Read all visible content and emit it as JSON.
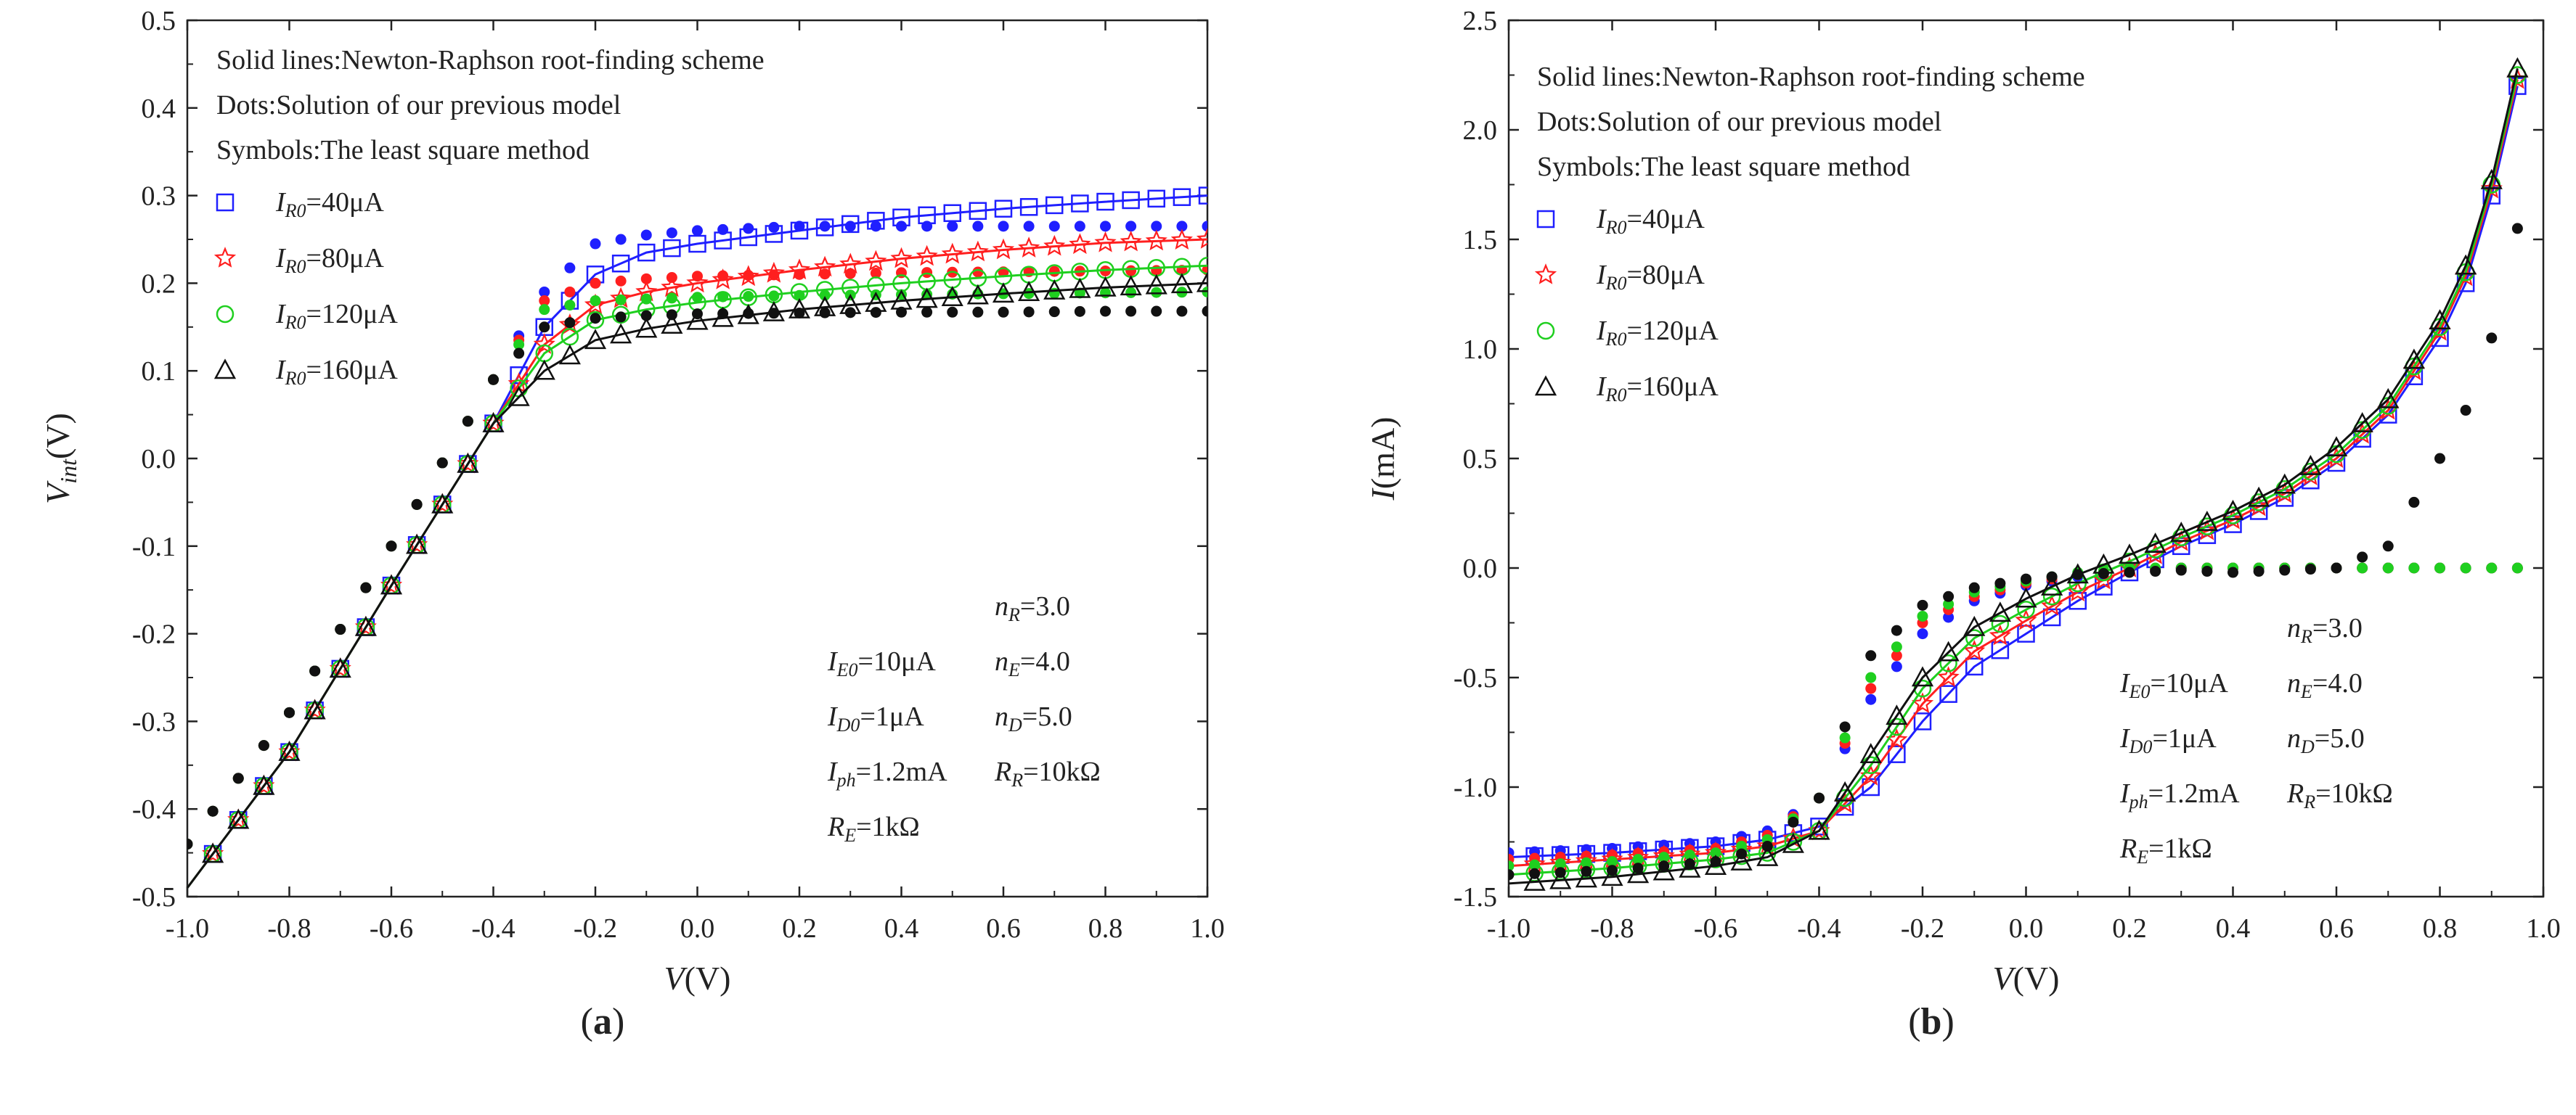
{
  "chart_data": [
    {
      "panel": "a",
      "type": "line",
      "caption": "(a)",
      "xlabel": "V(V)",
      "ylabel": "Vint(V)",
      "ylabel_main": "V",
      "ylabel_sub": "int",
      "ylabel_unit": "(V)",
      "xlim": [
        -1.0,
        1.0
      ],
      "ylim": [
        -0.5,
        0.5
      ],
      "xticks": [
        "-1.0",
        "-0.8",
        "-0.6",
        "-0.4",
        "-0.2",
        "0.0",
        "0.2",
        "0.4",
        "0.6",
        "0.8",
        "1.0"
      ],
      "yticks": [
        "-0.5",
        "-0.4",
        "-0.3",
        "-0.2",
        "-0.1",
        "0.0",
        "0.1",
        "0.2",
        "0.3",
        "0.4",
        "0.5"
      ],
      "legend_lines": [
        "Solid lines:Newton-Raphson root-finding scheme",
        "Dots:Solution of our previous model",
        "Symbols:The least square method"
      ],
      "legend_location": "top-left",
      "params": [
        {
          "main": "n",
          "sub": "R",
          "rest": "=3.0"
        },
        {
          "main": "I",
          "sub": "E0",
          "rest": "=10μA"
        },
        {
          "main": "n",
          "sub": "E",
          "rest": "=4.0"
        },
        {
          "main": "I",
          "sub": "D0",
          "rest": "=1μA"
        },
        {
          "main": "n",
          "sub": "D",
          "rest": "=5.0"
        },
        {
          "main": "I",
          "sub": "ph",
          "rest": "=1.2mA"
        },
        {
          "main": "R",
          "sub": "R",
          "rest": "=10kΩ"
        },
        {
          "main": "R",
          "sub": "E",
          "rest": "=1kΩ"
        }
      ],
      "series": [
        {
          "name": "IR0=40μA",
          "label_main": "I",
          "label_sub": "R0",
          "label_rest": "=40μA",
          "color": "#1f1fff",
          "marker": "square",
          "x": [
            -1.0,
            -0.8,
            -0.6,
            -0.4,
            -0.3,
            -0.2,
            -0.1,
            0.0,
            0.2,
            0.4,
            0.6,
            0.8,
            1.0
          ],
          "line": [
            -0.49,
            -0.335,
            -0.145,
            0.04,
            0.15,
            0.21,
            0.235,
            0.245,
            0.26,
            0.275,
            0.285,
            0.293,
            0.3
          ],
          "dots": [
            -0.44,
            -0.29,
            -0.1,
            0.09,
            0.19,
            0.245,
            0.255,
            0.26,
            0.265,
            0.265,
            0.265,
            0.265,
            0.265
          ]
        },
        {
          "name": "IR0=80μA",
          "label_main": "I",
          "label_sub": "R0",
          "label_rest": "=80μA",
          "color": "#ff1f1f",
          "marker": "star",
          "x": [
            -1.0,
            -0.8,
            -0.6,
            -0.4,
            -0.3,
            -0.2,
            -0.1,
            0.0,
            0.2,
            0.4,
            0.6,
            0.8,
            1.0
          ],
          "line": [
            -0.49,
            -0.335,
            -0.145,
            0.04,
            0.13,
            0.175,
            0.19,
            0.2,
            0.215,
            0.228,
            0.238,
            0.246,
            0.25
          ],
          "dots": [
            -0.44,
            -0.29,
            -0.1,
            0.09,
            0.18,
            0.2,
            0.205,
            0.208,
            0.21,
            0.212,
            0.213,
            0.214,
            0.215
          ]
        },
        {
          "name": "IR0=120μA",
          "label_main": "I",
          "label_sub": "R0",
          "label_rest": "=120μA",
          "color": "#1fcf1f",
          "marker": "circle",
          "x": [
            -1.0,
            -0.8,
            -0.6,
            -0.4,
            -0.3,
            -0.2,
            -0.1,
            0.0,
            0.2,
            0.4,
            0.6,
            0.8,
            1.0
          ],
          "line": [
            -0.49,
            -0.335,
            -0.145,
            0.04,
            0.12,
            0.158,
            0.17,
            0.178,
            0.19,
            0.2,
            0.208,
            0.215,
            0.22
          ],
          "dots": [
            -0.44,
            -0.29,
            -0.1,
            0.09,
            0.17,
            0.18,
            0.182,
            0.184,
            0.186,
            0.187,
            0.188,
            0.189,
            0.19
          ]
        },
        {
          "name": "IR0=160μA",
          "label_main": "I",
          "label_sub": "R0",
          "label_rest": "=160μA",
          "color": "#111111",
          "marker": "triangle",
          "x": [
            -1.0,
            -0.8,
            -0.6,
            -0.4,
            -0.3,
            -0.2,
            -0.1,
            0.0,
            0.2,
            0.4,
            0.6,
            0.8,
            1.0
          ],
          "line": [
            -0.49,
            -0.335,
            -0.145,
            0.04,
            0.1,
            0.135,
            0.148,
            0.157,
            0.17,
            0.18,
            0.188,
            0.195,
            0.2
          ],
          "dots": [
            -0.44,
            -0.29,
            -0.1,
            0.09,
            0.15,
            0.16,
            0.163,
            0.165,
            0.166,
            0.167,
            0.167,
            0.168,
            0.168
          ]
        }
      ]
    },
    {
      "panel": "b",
      "type": "line",
      "caption": "(b)",
      "xlabel": "V(V)",
      "ylabel": "I(mA)",
      "ylabel_main": "I",
      "ylabel_sub": "",
      "ylabel_unit": "(mA)",
      "xlim": [
        -1.0,
        1.0
      ],
      "ylim": [
        -1.5,
        2.5
      ],
      "xticks": [
        "-1.0",
        "-0.8",
        "-0.6",
        "-0.4",
        "-0.2",
        "0.0",
        "0.2",
        "0.4",
        "0.6",
        "0.8",
        "1.0"
      ],
      "yticks": [
        "-1.5",
        "-1.0",
        "-0.5",
        "0.0",
        "0.5",
        "1.0",
        "1.5",
        "2.0",
        "2.5"
      ],
      "legend_lines": [
        "Solid lines:Newton-Raphson root-finding scheme",
        "Dots:Solution of our previous model",
        "Symbols:The least square method"
      ],
      "legend_location": "top-left",
      "params": [
        {
          "main": "n",
          "sub": "R",
          "rest": "=3.0"
        },
        {
          "main": "I",
          "sub": "E0",
          "rest": "=10μA"
        },
        {
          "main": "n",
          "sub": "E",
          "rest": "=4.0"
        },
        {
          "main": "I",
          "sub": "D0",
          "rest": "=1μA"
        },
        {
          "main": "n",
          "sub": "D",
          "rest": "=5.0"
        },
        {
          "main": "I",
          "sub": "ph",
          "rest": "=1.2mA"
        },
        {
          "main": "R",
          "sub": "R",
          "rest": "=10kΩ"
        },
        {
          "main": "R",
          "sub": "E",
          "rest": "=1kΩ"
        }
      ],
      "series": [
        {
          "name": "IR0=40μA",
          "label_main": "I",
          "label_sub": "R0",
          "label_rest": "=40μA",
          "color": "#1f1fff",
          "marker": "square",
          "x": [
            -1.0,
            -0.8,
            -0.6,
            -0.5,
            -0.4,
            -0.3,
            -0.2,
            -0.1,
            0.0,
            0.1,
            0.2,
            0.3,
            0.4,
            0.5,
            0.6,
            0.7,
            0.8,
            0.85,
            0.9,
            0.95
          ],
          "line": [
            -1.32,
            -1.3,
            -1.27,
            -1.24,
            -1.18,
            -1.0,
            -0.7,
            -0.45,
            -0.3,
            -0.15,
            -0.02,
            0.1,
            0.2,
            0.32,
            0.48,
            0.7,
            1.05,
            1.3,
            1.7,
            2.2
          ],
          "dots": [
            -1.3,
            -1.28,
            -1.25,
            -1.2,
            -1.05,
            -0.6,
            -0.3,
            -0.15,
            -0.08,
            -0.04,
            -0.01,
            0.0,
            0.0,
            0.0,
            0.0,
            0.0,
            0.0,
            0.0,
            0.0,
            0.0
          ]
        },
        {
          "name": "IR0=80μA",
          "label_main": "I",
          "label_sub": "R0",
          "label_rest": "=80μA",
          "color": "#ff1f1f",
          "marker": "star",
          "x": [
            -1.0,
            -0.8,
            -0.6,
            -0.5,
            -0.4,
            -0.3,
            -0.2,
            -0.1,
            0.0,
            0.1,
            0.2,
            0.3,
            0.4,
            0.5,
            0.6,
            0.7,
            0.8,
            0.85,
            0.9,
            0.95
          ],
          "line": [
            -1.36,
            -1.33,
            -1.3,
            -1.27,
            -1.2,
            -0.95,
            -0.62,
            -0.38,
            -0.24,
            -0.11,
            0.0,
            0.12,
            0.22,
            0.34,
            0.5,
            0.72,
            1.08,
            1.33,
            1.73,
            2.23
          ],
          "dots": [
            -1.33,
            -1.31,
            -1.28,
            -1.22,
            -1.05,
            -0.55,
            -0.25,
            -0.13,
            -0.07,
            -0.03,
            -0.01,
            0.0,
            0.0,
            0.0,
            0.0,
            0.0,
            0.0,
            0.0,
            0.0,
            0.0
          ]
        },
        {
          "name": "IR0=120μA",
          "label_main": "I",
          "label_sub": "R0",
          "label_rest": "=120μA",
          "color": "#1fcf1f",
          "marker": "circle",
          "x": [
            -1.0,
            -0.8,
            -0.6,
            -0.5,
            -0.4,
            -0.3,
            -0.2,
            -0.1,
            0.0,
            0.1,
            0.2,
            0.3,
            0.4,
            0.5,
            0.6,
            0.7,
            0.8,
            0.85,
            0.9,
            0.95
          ],
          "line": [
            -1.4,
            -1.37,
            -1.33,
            -1.3,
            -1.2,
            -0.9,
            -0.55,
            -0.32,
            -0.19,
            -0.07,
            0.03,
            0.14,
            0.24,
            0.36,
            0.52,
            0.74,
            1.1,
            1.35,
            1.75,
            2.25
          ],
          "dots": [
            -1.36,
            -1.34,
            -1.3,
            -1.24,
            -1.05,
            -0.5,
            -0.22,
            -0.11,
            -0.06,
            -0.02,
            0.0,
            0.0,
            0.0,
            0.0,
            0.0,
            0.0,
            0.0,
            0.0,
            0.0,
            0.0
          ]
        },
        {
          "name": "IR0=160μA",
          "label_main": "I",
          "label_sub": "R0",
          "label_rest": "=160μA",
          "color": "#111111",
          "marker": "triangle",
          "x": [
            -1.0,
            -0.8,
            -0.6,
            -0.5,
            -0.4,
            -0.3,
            -0.2,
            -0.1,
            0.0,
            0.1,
            0.2,
            0.3,
            0.4,
            0.5,
            0.6,
            0.7,
            0.8,
            0.85,
            0.9,
            0.95
          ],
          "line": [
            -1.44,
            -1.41,
            -1.36,
            -1.32,
            -1.2,
            -0.85,
            -0.5,
            -0.27,
            -0.14,
            -0.03,
            0.06,
            0.16,
            0.26,
            0.38,
            0.55,
            0.77,
            1.13,
            1.38,
            1.77,
            2.28
          ],
          "dots": [
            -1.4,
            -1.38,
            -1.34,
            -1.27,
            -1.05,
            -0.4,
            -0.17,
            -0.09,
            -0.05,
            -0.03,
            -0.02,
            -0.01,
            -0.02,
            -0.01,
            0.0,
            0.1,
            0.5,
            0.72,
            1.05,
            1.55
          ]
        }
      ]
    }
  ]
}
